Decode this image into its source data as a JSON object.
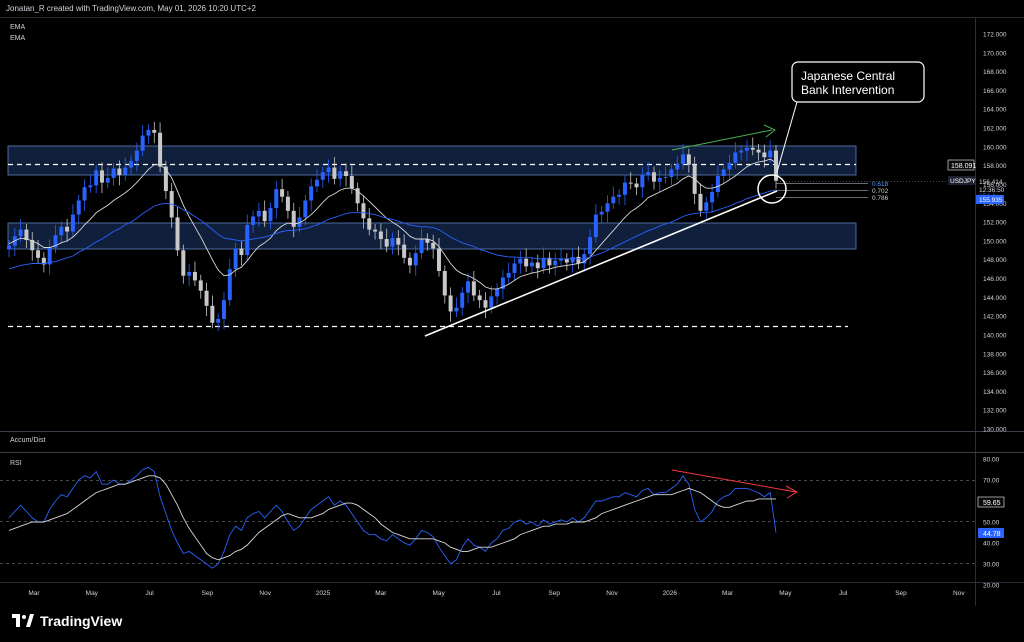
{
  "header": {
    "credit": "Jonatan_R created with TradingView.com, May 01, 2026 10:20 UTC+2",
    "indicators": [
      "EMA",
      "EMA"
    ]
  },
  "panes": {
    "accum_dist_label": "Accum/Dist",
    "rsi_label": "RSI"
  },
  "annotation": {
    "callout_line1": "Japanese Central",
    "callout_line2": "Bank Intervention"
  },
  "fib_levels": [
    "0.618",
    "0.702",
    "0.786"
  ],
  "price_scale": {
    "symbol_tag": "USDJPY",
    "last_price": "156.414",
    "countdown": "12:36:50",
    "level_tag_1": "158.091",
    "level_tag_2": "155.935",
    "partial_tag": "154.4"
  },
  "rsi_scale": {
    "value_1": "59.65",
    "value_2": "44.78"
  },
  "footer": {
    "brand": "TradingView"
  },
  "colors": {
    "background": "#000000",
    "bull": "#2962ff",
    "bear": "#c8c8c8",
    "zone": "#1e3a6e",
    "ema_fast": "#d9d9d9",
    "ema_slow": "#2962ff",
    "rsi_line": "#2962ff",
    "rsi_ma": "#d9d9d9",
    "up_arrow": "#4caf50",
    "down_arrow": "#f23645"
  },
  "chart_data": {
    "type": "candlestick",
    "symbol": "USDJPY",
    "timeframe": "weekly",
    "x_ticks": [
      "Mar",
      "May",
      "Jul",
      "Sep",
      "Nov",
      "2025",
      "Mar",
      "May",
      "Jul",
      "Sep",
      "Nov",
      "2026",
      "Mar",
      "May",
      "Jul",
      "Sep",
      "Nov"
    ],
    "y_ticks": [
      "172.000",
      "170.000",
      "168.000",
      "166.000",
      "164.000",
      "162.000",
      "160.000",
      "158.000",
      "156.000",
      "154.000",
      "152.000",
      "150.000",
      "148.000",
      "146.000",
      "144.000",
      "142.000",
      "140.000",
      "138.000",
      "136.000",
      "134.000",
      "132.000",
      "130.000"
    ],
    "ylim": [
      130,
      173
    ],
    "close_series": [
      149.5,
      150.5,
      151.2,
      150.1,
      149.0,
      148.2,
      147.5,
      149.3,
      150.6,
      151.5,
      151.0,
      152.8,
      154.3,
      155.7,
      155.9,
      157.5,
      156.2,
      156.7,
      157.7,
      157.0,
      157.8,
      158.5,
      159.6,
      161.2,
      161.8,
      161.5,
      157.9,
      155.3,
      152.5,
      149.0,
      146.3,
      146.7,
      145.8,
      144.7,
      143.1,
      141.3,
      141.7,
      143.7,
      147.0,
      149.2,
      148.5,
      151.7,
      152.6,
      153.2,
      152.1,
      153.5,
      155.5,
      154.7,
      153.2,
      151.5,
      152.5,
      154.3,
      155.8,
      156.5,
      157.3,
      157.8,
      156.6,
      157.4,
      156.9,
      155.6,
      154.0,
      152.4,
      151.2,
      151.0,
      150.2,
      149.4,
      150.3,
      149.6,
      148.2,
      147.4,
      148.7,
      150.2,
      149.8,
      149.2,
      146.8,
      144.2,
      142.5,
      142.9,
      144.5,
      145.7,
      144.2,
      143.7,
      142.9,
      144.1,
      144.9,
      146.1,
      146.6,
      147.6,
      148.1,
      147.3,
      147.7,
      147.1,
      148.2,
      147.4,
      147.9,
      148.1,
      147.7,
      148.3,
      147.6,
      148.6,
      150.4,
      152.8,
      153.1,
      154.0,
      154.7,
      154.9,
      156.2,
      156.1,
      155.7,
      157.0,
      157.3,
      156.3,
      156.7,
      156.8,
      157.6,
      158.2,
      159.2,
      158.1,
      155.0,
      153.2,
      154.1,
      155.2,
      156.9,
      157.6,
      158.3,
      159.4,
      159.6,
      159.9,
      159.7,
      159.4,
      158.9,
      159.6,
      156.4
    ],
    "ema_fast_series": [
      149.7,
      150.0,
      150.3,
      150.2,
      150.0,
      149.7,
      149.3,
      149.3,
      149.5,
      149.8,
      150.0,
      150.4,
      151.0,
      151.7,
      152.3,
      153.0,
      153.4,
      153.8,
      154.3,
      154.7,
      155.1,
      155.6,
      156.2,
      156.9,
      157.6,
      158.1,
      158.1,
      157.6,
      156.7,
      155.3,
      153.8,
      152.6,
      151.5,
      150.4,
      149.2,
      148.0,
      146.9,
      146.3,
      146.4,
      146.9,
      147.2,
      147.9,
      148.7,
      149.4,
      149.8,
      150.3,
      151.1,
      151.6,
      151.9,
      151.8,
      151.9,
      152.3,
      152.8,
      153.4,
      154.1,
      154.7,
      155.0,
      155.4,
      155.6,
      155.6,
      155.3,
      154.8,
      154.2,
      153.6,
      153.0,
      152.4,
      152.0,
      151.6,
      151.1,
      150.5,
      150.2,
      150.2,
      150.2,
      150.0,
      149.4,
      148.5,
      147.6,
      146.9,
      146.5,
      146.3,
      146.0,
      145.6,
      145.1,
      144.9,
      144.9,
      145.1,
      145.4,
      145.8,
      146.2,
      146.4,
      146.6,
      146.7,
      146.9,
      147.0,
      147.2,
      147.3,
      147.4,
      147.5,
      147.6,
      147.8,
      148.3,
      149.0,
      149.7,
      150.4,
      151.1,
      151.8,
      152.5,
      153.1,
      153.5,
      154.0,
      154.6,
      154.9,
      155.2,
      155.5,
      155.8,
      156.1,
      156.6,
      156.9,
      156.6,
      156.0,
      155.6,
      155.6,
      155.8,
      156.1,
      156.5,
      156.9,
      157.4,
      157.9,
      158.2,
      158.4,
      158.5,
      158.7,
      158.3
    ],
    "ema_slow_series": [
      147.0,
      147.2,
      147.4,
      147.5,
      147.6,
      147.6,
      147.6,
      147.7,
      147.8,
      148.0,
      148.2,
      148.4,
      148.8,
      149.1,
      149.5,
      149.9,
      150.2,
      150.6,
      151.0,
      151.3,
      151.7,
      152.0,
      152.4,
      152.9,
      153.3,
      153.7,
      153.9,
      154.0,
      153.9,
      153.7,
      153.3,
      153.0,
      152.6,
      152.2,
      151.7,
      151.2,
      150.7,
      150.3,
      150.2,
      150.1,
      150.0,
      150.1,
      150.2,
      150.3,
      150.4,
      150.6,
      150.8,
      151.0,
      151.1,
      151.1,
      151.2,
      151.3,
      151.5,
      151.7,
      152.0,
      152.3,
      152.5,
      152.7,
      152.9,
      153.0,
      153.0,
      153.0,
      152.9,
      152.8,
      152.6,
      152.4,
      152.3,
      152.1,
      151.9,
      151.7,
      151.6,
      151.5,
      151.5,
      151.4,
      151.2,
      150.8,
      150.4,
      150.1,
      149.8,
      149.6,
      149.4,
      149.1,
      148.9,
      148.7,
      148.5,
      148.4,
      148.3,
      148.3,
      148.2,
      148.2,
      148.2,
      148.1,
      148.1,
      148.1,
      148.1,
      148.1,
      148.1,
      148.1,
      148.1,
      148.1,
      148.3,
      148.5,
      148.7,
      149.0,
      149.3,
      149.6,
      149.9,
      150.2,
      150.5,
      150.8,
      151.1,
      151.3,
      151.6,
      151.8,
      152.0,
      152.3,
      152.6,
      152.8,
      152.9,
      153.0,
      153.0,
      153.1,
      153.3,
      153.5,
      153.7,
      154.0,
      154.2,
      154.5,
      154.7,
      154.9,
      155.1,
      155.3,
      155.4
    ],
    "zones": [
      {
        "low": 157.0,
        "high": 160.1
      },
      {
        "low": 149.5,
        "high": 152.0
      }
    ],
    "dashed_levels": [
      158.6,
      141.0
    ],
    "rsi": {
      "ylim": [
        20,
        80
      ],
      "y_ticks": [
        "80.00",
        "70.00",
        "60.00",
        "50.00",
        "40.00",
        "30.00",
        "20.00"
      ],
      "guides": [
        70,
        50,
        30
      ],
      "series": [
        52,
        55,
        58,
        55,
        52,
        50,
        50,
        56,
        60,
        63,
        62,
        66,
        70,
        72,
        71,
        74,
        68,
        68,
        70,
        68,
        68,
        70,
        72,
        75,
        76,
        74,
        62,
        54,
        46,
        40,
        35,
        36,
        34,
        32,
        30,
        28,
        30,
        36,
        44,
        48,
        46,
        52,
        54,
        55,
        52,
        55,
        58,
        55,
        50,
        46,
        48,
        52,
        56,
        58,
        60,
        62,
        58,
        60,
        58,
        54,
        50,
        46,
        44,
        44,
        42,
        41,
        44,
        42,
        40,
        39,
        42,
        46,
        45,
        43,
        38,
        34,
        30,
        32,
        38,
        42,
        39,
        38,
        36,
        40,
        42,
        46,
        47,
        50,
        51,
        49,
        50,
        48,
        51,
        49,
        50,
        51,
        50,
        52,
        50,
        52,
        56,
        60,
        60,
        61,
        62,
        62,
        64,
        63,
        62,
        65,
        66,
        63,
        64,
        64,
        66,
        68,
        72,
        68,
        56,
        50,
        52,
        55,
        60,
        62,
        63,
        66,
        66,
        66,
        65,
        64,
        62,
        64,
        45
      ],
      "ma_series": [
        46,
        47,
        48,
        49,
        50,
        50,
        50,
        51,
        52,
        53,
        54,
        56,
        58,
        60,
        62,
        64,
        65,
        66,
        67,
        68,
        68,
        69,
        70,
        71,
        72,
        72,
        71,
        68,
        63,
        58,
        52,
        47,
        43,
        39,
        35,
        33,
        32,
        33,
        34,
        36,
        37,
        39,
        42,
        45,
        47,
        49,
        51,
        53,
        54,
        53,
        52,
        52,
        52,
        53,
        54,
        56,
        57,
        58,
        59,
        59,
        58,
        56,
        54,
        52,
        49,
        47,
        45,
        44,
        43,
        42,
        42,
        42,
        42,
        42,
        41,
        40,
        38,
        37,
        36,
        36,
        37,
        38,
        38,
        38,
        39,
        40,
        41,
        42,
        44,
        45,
        46,
        47,
        48,
        48,
        49,
        49,
        49,
        50,
        50,
        50,
        51,
        52,
        54,
        55,
        56,
        57,
        58,
        59,
        60,
        61,
        62,
        63,
        63,
        63,
        63,
        64,
        65,
        66,
        65,
        64,
        62,
        60,
        58,
        57,
        57,
        58,
        59,
        60,
        60,
        61,
        61,
        61,
        61
      ]
    }
  }
}
